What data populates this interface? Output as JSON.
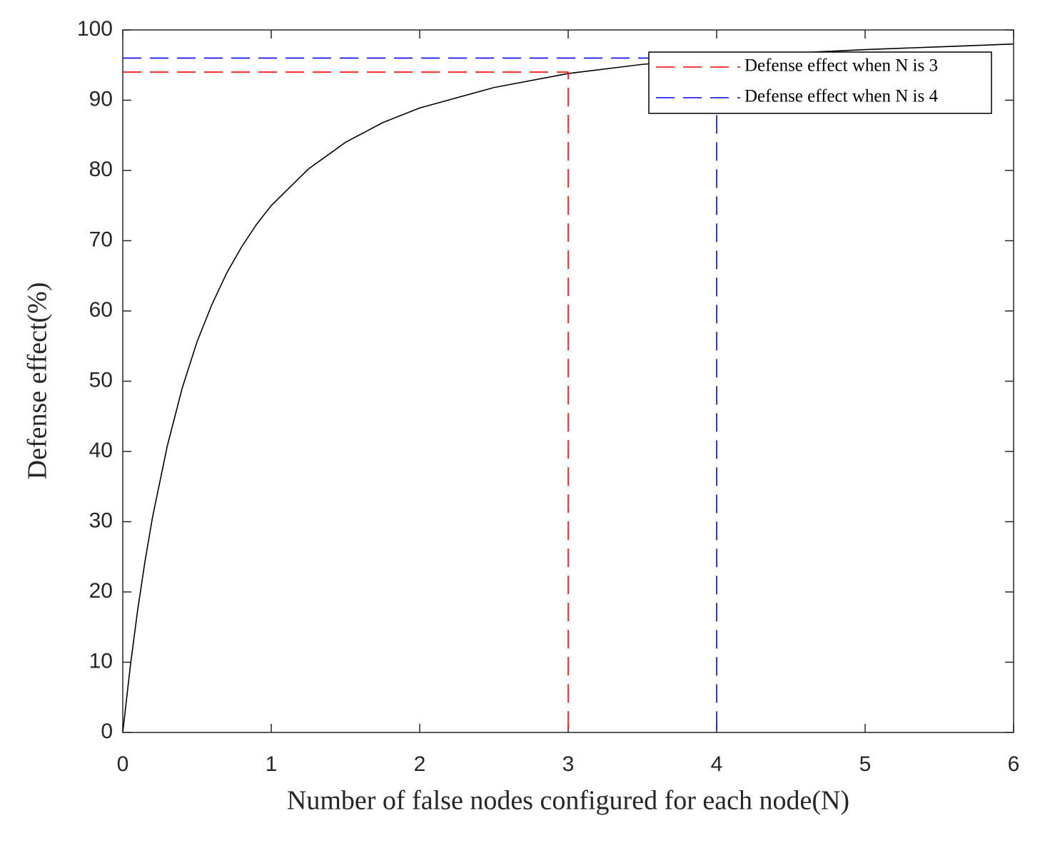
{
  "chart_data": {
    "type": "line",
    "xlabel": "Number of false nodes configured for each node(N)",
    "ylabel": "Defense effect(%)",
    "xlim": [
      0,
      6
    ],
    "ylim": [
      0,
      100
    ],
    "xticks": [
      0,
      1,
      2,
      3,
      4,
      5,
      6
    ],
    "yticks": [
      0,
      10,
      20,
      30,
      40,
      50,
      60,
      70,
      80,
      90,
      100
    ],
    "legend": "upper right",
    "series": [
      {
        "color": "#000000",
        "style": "solid",
        "x": [
          0,
          0.05,
          0.1,
          0.15,
          0.2,
          0.3,
          0.4,
          0.5,
          0.6,
          0.7,
          0.8,
          0.9,
          1,
          1.25,
          1.5,
          1.75,
          2,
          2.5,
          3,
          3.5,
          4,
          4.5,
          5,
          5.5,
          6
        ],
        "values": [
          0,
          9.3,
          17.4,
          24.4,
          30.6,
          40.8,
          49.0,
          55.6,
          60.9,
          65.4,
          69.1,
          72.3,
          75,
          80.2,
          84,
          86.8,
          88.9,
          91.8,
          93.8,
          95.1,
          96,
          96.7,
          97.2,
          97.6,
          98.0
        ]
      },
      {
        "name": "Defense effect when N is 3",
        "color": "#ff0000",
        "style": "dashed",
        "x": [
          0,
          3,
          3
        ],
        "values": [
          94,
          94,
          0
        ]
      },
      {
        "name": "Defense effect when N is 4",
        "color": "#0000ff",
        "style": "dashed",
        "x": [
          0,
          4,
          4
        ],
        "values": [
          96,
          96,
          0
        ]
      }
    ]
  }
}
